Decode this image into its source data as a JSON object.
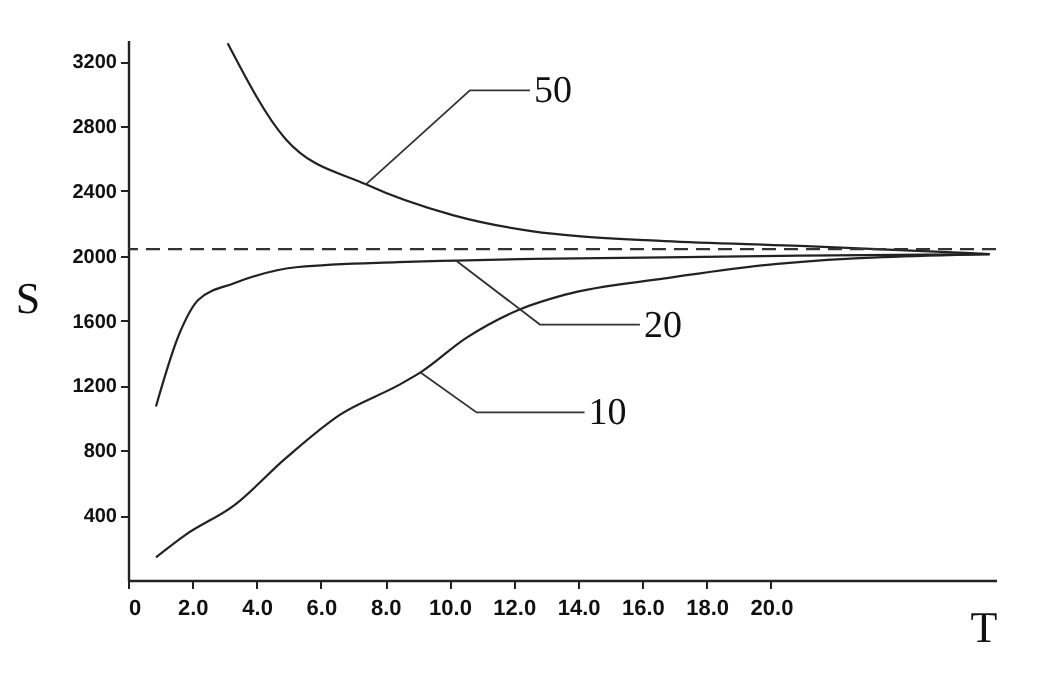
{
  "chart_data": {
    "type": "line",
    "xlabel": "T",
    "ylabel": "S",
    "xlim": [
      0,
      27
    ],
    "ylim": [
      0,
      3330
    ],
    "xticks": [
      0,
      {
        "value": 2,
        "label": "2.0"
      },
      {
        "value": 4,
        "label": "4.0"
      },
      {
        "value": 6,
        "label": "6.0"
      },
      {
        "value": 8,
        "label": "8.0"
      },
      {
        "value": 10,
        "label": "10.0"
      },
      {
        "value": 12,
        "label": "12.0"
      },
      {
        "value": 14,
        "label": "14.0"
      },
      {
        "value": 16,
        "label": "16.0"
      },
      {
        "value": 18,
        "label": "18.0"
      },
      {
        "value": 20,
        "label": "20.0"
      }
    ],
    "yticks": [
      400,
      800,
      1200,
      1600,
      2000,
      2400,
      2800,
      3200
    ],
    "annotations": [
      {
        "text": "50",
        "x": 7.4,
        "y": 2440
      },
      {
        "text": "20",
        "x": 10.2,
        "y": 1970
      },
      {
        "text": "10",
        "x": 9.1,
        "y": 1280
      }
    ],
    "grid": false,
    "marker": "none",
    "line_style": "solid",
    "ref_lines": [
      {
        "axis": "y",
        "value": 2040,
        "line_style": "dashed",
        "color": "#333333"
      }
    ],
    "series": [
      {
        "color": "#222222",
        "x": [
          3.1,
          4.9,
          7.4,
          10.1,
          12.6,
          14.0,
          16.7,
          20.9,
          26.8
        ],
        "values": [
          3310,
          2720,
          2440,
          2250,
          2150,
          2120,
          2090,
          2060,
          2010
        ]
      },
      {
        "color": "#222222",
        "x": [
          0.87,
          1.6,
          2.2,
          3.3,
          5.3,
          8.4,
          10.2,
          12.6,
          16.7,
          20.9,
          26.8
        ],
        "values": [
          1070,
          1520,
          1730,
          1830,
          1930,
          1960,
          1970,
          1980,
          1990,
          2000,
          2010
        ]
      },
      {
        "color": "#222222",
        "x": [
          0.87,
          1.8,
          3.3,
          4.9,
          6.6,
          8.4,
          9.1,
          10.5,
          12.2,
          13.6,
          16.7,
          20.2,
          26.8
        ],
        "values": [
          140,
          280,
          460,
          750,
          1020,
          1200,
          1280,
          1490,
          1670,
          1760,
          1860,
          1950,
          2010
        ]
      }
    ]
  }
}
